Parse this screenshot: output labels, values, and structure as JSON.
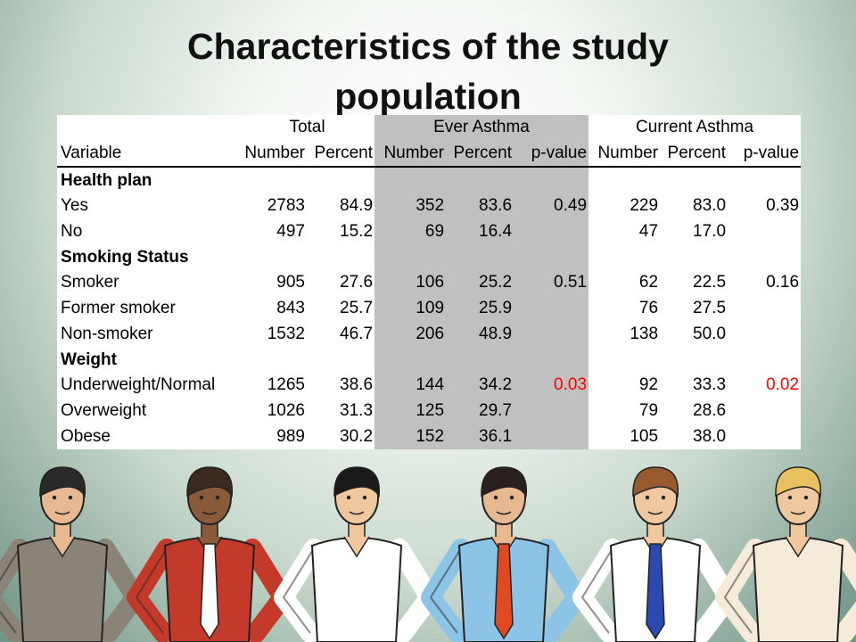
{
  "slide": {
    "title_line1": "Characteristics of the study",
    "title_line2": "population"
  },
  "table": {
    "groups": [
      "Total",
      "Ever Asthma",
      "Current Asthma"
    ],
    "columns": [
      "Variable",
      "Number",
      "Percent",
      "Number",
      "Percent",
      "p-value",
      "Number",
      "Percent",
      "p-value"
    ],
    "rows": [
      {
        "type": "section",
        "cells": [
          "Health plan",
          "",
          "",
          "",
          "",
          "",
          "",
          "",
          ""
        ]
      },
      {
        "type": "data",
        "cells": [
          "Yes",
          "2783",
          "84.9",
          "352",
          "83.6",
          "0.49",
          "229",
          "83.0",
          "0.39"
        ]
      },
      {
        "type": "data",
        "cells": [
          "No",
          "497",
          "15.2",
          "69",
          "16.4",
          "",
          "47",
          "17.0",
          ""
        ]
      },
      {
        "type": "section",
        "cells": [
          "Smoking Status",
          "",
          "",
          "",
          "",
          "",
          "",
          "",
          ""
        ]
      },
      {
        "type": "data",
        "cells": [
          "Smoker",
          "905",
          "27.6",
          "106",
          "25.2",
          "0.51",
          "62",
          "22.5",
          "0.16"
        ]
      },
      {
        "type": "data",
        "cells": [
          "Former smoker",
          "843",
          "25.7",
          "109",
          "25.9",
          "",
          "76",
          "27.5",
          ""
        ]
      },
      {
        "type": "data",
        "cells": [
          "Non-smoker",
          "1532",
          "46.7",
          "206",
          "48.9",
          "",
          "138",
          "50.0",
          ""
        ]
      },
      {
        "type": "section",
        "cells": [
          "Weight",
          "",
          "",
          "",
          "",
          "",
          "",
          "",
          ""
        ]
      },
      {
        "type": "data",
        "cells": [
          "Underweight/Normal",
          "1265",
          "38.6",
          "144",
          "34.2",
          "0.03",
          "92",
          "33.3",
          "0.02"
        ]
      },
      {
        "type": "data",
        "cells": [
          "Overweight",
          "1026",
          "31.3",
          "125",
          "29.7",
          "",
          "79",
          "28.6",
          ""
        ]
      },
      {
        "type": "data",
        "cells": [
          "Obese",
          "989",
          "30.2",
          "152",
          "36.1",
          "",
          "105",
          "38.0",
          ""
        ]
      }
    ],
    "significant_color": "#ff0000",
    "shade_color": "#c0c0c0"
  },
  "illustration": {
    "people": [
      {
        "name": "woman-gray-suit",
        "skin": "#e8b890",
        "hair": "#2a2a2a",
        "shirt": "#8a8478",
        "tie": ""
      },
      {
        "name": "man-red-shirt",
        "skin": "#8a5a3a",
        "hair": "#3a2a20",
        "shirt": "#c43a2a",
        "tie": "#ffffff"
      },
      {
        "name": "woman-white-top",
        "skin": "#f0c8a0",
        "hair": "#1a1a1a",
        "shirt": "#ffffff",
        "tie": ""
      },
      {
        "name": "man-blue-shirt-glasses",
        "skin": "#e8b890",
        "hair": "#2a2020",
        "shirt": "#8cc4e8",
        "tie": "#e04a20"
      },
      {
        "name": "man-white-shirt",
        "skin": "#f0c8a0",
        "hair": "#9a5a30",
        "shirt": "#ffffff",
        "tie": "#2a4ab0"
      },
      {
        "name": "woman-blonde",
        "skin": "#f0c8a0",
        "hair": "#e8c060",
        "shirt": "#f4ecd8",
        "tie": ""
      }
    ]
  }
}
